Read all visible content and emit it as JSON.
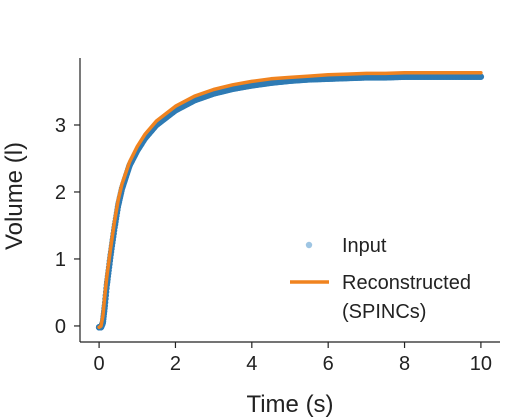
{
  "chart_data": {
    "type": "line",
    "xlabel": "Time (s)",
    "ylabel": "Volume (l)",
    "xlim": [
      -0.5,
      10.5
    ],
    "ylim": [
      -0.15,
      4.0
    ],
    "xticks": [
      0,
      2,
      4,
      6,
      8,
      10
    ],
    "yticks": [
      0,
      1,
      2,
      3
    ],
    "grid": false,
    "legend_position": "right",
    "series": [
      {
        "name": "Input",
        "style": "scatter",
        "color": "#2e7bb4",
        "legend_color": "#9ec5e3",
        "x": [
          0,
          0.05,
          0.1,
          0.15,
          0.2,
          0.3,
          0.4,
          0.5,
          0.6,
          0.8,
          1.0,
          1.2,
          1.5,
          2.0,
          2.5,
          3.0,
          3.5,
          4.0,
          4.5,
          5.0,
          5.5,
          6.0,
          6.5,
          7.0,
          7.5,
          8.0,
          8.5,
          9.0,
          9.5,
          10.0
        ],
        "y": [
          -0.02,
          -0.02,
          0.05,
          0.3,
          0.6,
          1.05,
          1.45,
          1.8,
          2.05,
          2.4,
          2.62,
          2.8,
          3.0,
          3.22,
          3.37,
          3.47,
          3.54,
          3.59,
          3.63,
          3.66,
          3.68,
          3.69,
          3.7,
          3.71,
          3.71,
          3.72,
          3.72,
          3.72,
          3.72,
          3.72
        ]
      },
      {
        "name": "Reconstructed\n(SPINCs)",
        "style": "line",
        "color": "#f0831f",
        "x": [
          0,
          0.05,
          0.1,
          0.15,
          0.2,
          0.3,
          0.4,
          0.5,
          0.6,
          0.8,
          1.0,
          1.2,
          1.5,
          2.0,
          2.5,
          3.0,
          3.5,
          4.0,
          4.5,
          5.0,
          5.5,
          6.0,
          6.5,
          7.0,
          7.5,
          8.0,
          8.5,
          9.0,
          9.5,
          10.0
        ],
        "y": [
          -0.02,
          0.0,
          0.15,
          0.45,
          0.72,
          1.15,
          1.55,
          1.88,
          2.12,
          2.45,
          2.68,
          2.86,
          3.06,
          3.28,
          3.43,
          3.53,
          3.6,
          3.65,
          3.69,
          3.71,
          3.73,
          3.75,
          3.76,
          3.77,
          3.77,
          3.78,
          3.78,
          3.78,
          3.78,
          3.78
        ]
      }
    ]
  }
}
